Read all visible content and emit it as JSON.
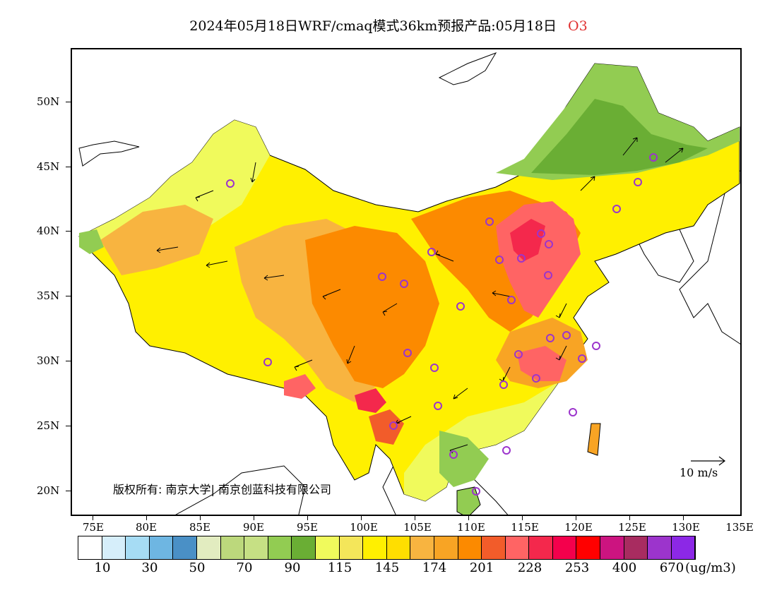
{
  "title": {
    "text": "2024年05月18日WRF/cmaq模式36km预报产品:05月18日",
    "pollutant": "O3"
  },
  "map": {
    "lat_labels": [
      "50N",
      "45N",
      "40N",
      "35N",
      "30N",
      "25N",
      "20N"
    ],
    "lon_labels": [
      "75E",
      "80E",
      "85E",
      "90E",
      "95E",
      "100E",
      "105E",
      "110E",
      "115E",
      "120E",
      "125E",
      "130E",
      "135E"
    ],
    "copyright": "版权所有: 南京大学| 南京创蓝科技有限公司",
    "wind_reference": "10 m/s"
  },
  "colorbar": {
    "colors": [
      "#ffffff",
      "#d6eefa",
      "#a6dcf4",
      "#6eb6e2",
      "#4a90c6",
      "#e2ecc0",
      "#bcd87c",
      "#c6e084",
      "#92cc52",
      "#6aae34",
      "#f0fa5c",
      "#f4e65a",
      "#fff000",
      "#ffde00",
      "#f8b440",
      "#f8a424",
      "#fc8a00",
      "#f25c2a",
      "#ff6464",
      "#f4284c",
      "#f4004c",
      "#ff0000",
      "#cc1480",
      "#a82c60",
      "#9c34cc",
      "#8c28e6"
    ],
    "labels": [
      "10",
      "30",
      "50",
      "70",
      "90",
      "115",
      "145",
      "174",
      "201",
      "228",
      "253",
      "400",
      "670"
    ],
    "unit": "(ug/m3)"
  }
}
